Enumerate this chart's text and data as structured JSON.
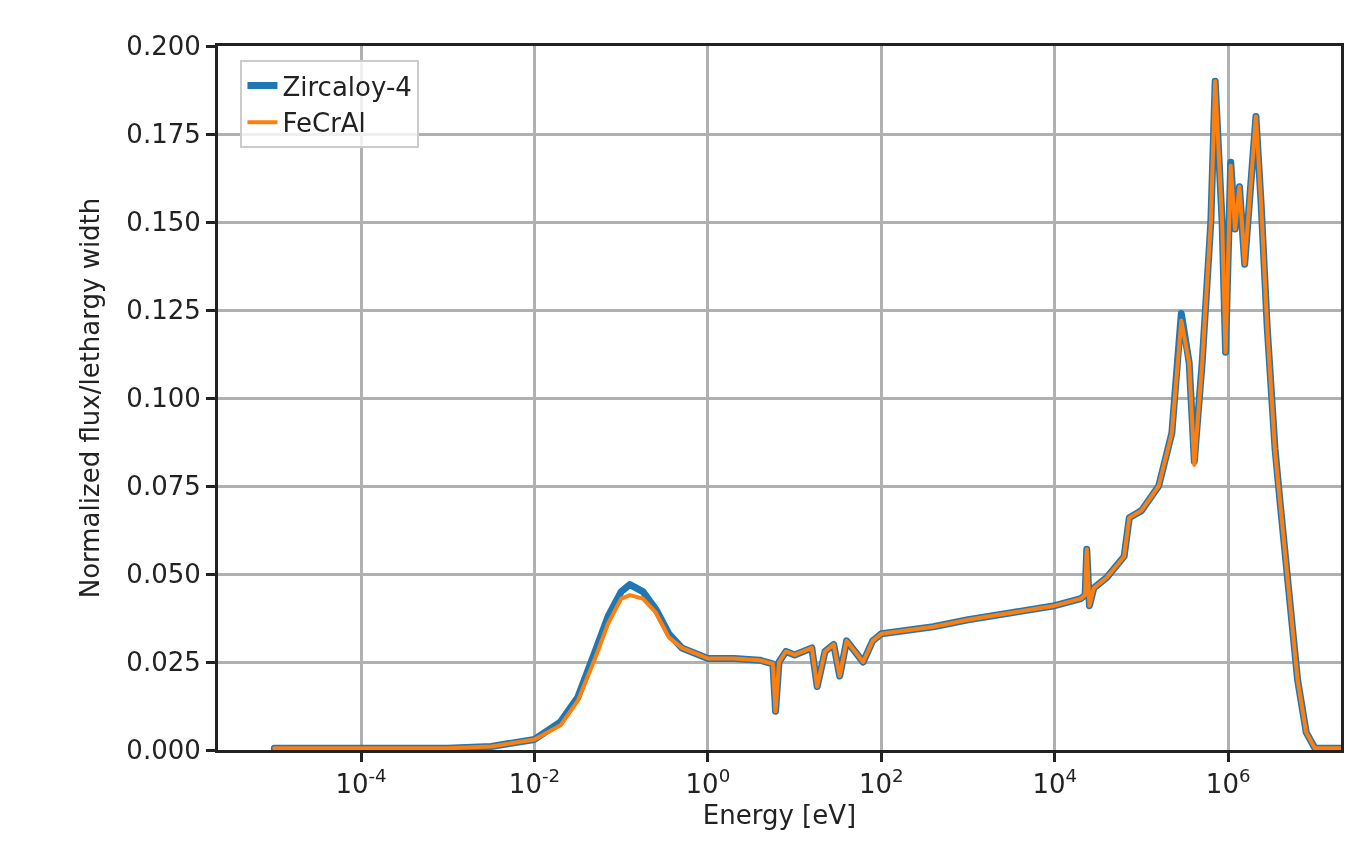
{
  "chart_data": {
    "type": "line",
    "xlabel": "Energy [eV]",
    "ylabel": "Normalized flux/lethargy width",
    "log": "x",
    "grid": true,
    "legend": "top left",
    "line_style": "solid",
    "marker": "none",
    "xlim": [
      2.24e-06,
      20000000.0
    ],
    "xticks": [
      {
        "value": 0.0001,
        "label": "10$^{-4}$"
      },
      {
        "value": 0.01,
        "label": "10$^{-2}$"
      },
      {
        "value": 1,
        "label": "10$^{0}$"
      },
      {
        "value": 100,
        "label": "10$^{2}$"
      },
      {
        "value": 10000,
        "label": "10$^{4}$"
      },
      {
        "value": 1000000,
        "label": "10$^{6}$"
      }
    ],
    "ylim": [
      0,
      0.2
    ],
    "yticks": [
      {
        "value": 0,
        "label": "0.000"
      },
      {
        "value": 0.025,
        "label": "0.025"
      },
      {
        "value": 0.05,
        "label": "0.050"
      },
      {
        "value": 0.075,
        "label": "0.075"
      },
      {
        "value": 0.1,
        "label": "0.100"
      },
      {
        "value": 0.125,
        "label": "0.125"
      },
      {
        "value": 0.15,
        "label": "0.150"
      },
      {
        "value": 0.175,
        "label": "0.175"
      },
      {
        "value": 0.2,
        "label": "0.200"
      }
    ],
    "x": [
      1e-05,
      0.001,
      0.00316,
      0.01,
      0.02,
      0.0316,
      0.05,
      0.0708,
      0.1,
      0.126,
      0.178,
      0.251,
      0.355,
      0.5,
      0.794,
      1,
      2,
      3.98,
      5.62,
      6.03,
      6.61,
      7.94,
      10,
      15.8,
      18.2,
      22.4,
      28.2,
      33.1,
      39.8,
      61.7,
      79.4,
      100,
      200,
      398,
      1000,
      3160,
      10000,
      20000,
      22400,
      23400,
      25100,
      28200,
      39800,
      63100,
      72400,
      100000,
      158000,
      224000,
      288000,
      355000,
      407000,
      501000,
      631000,
      708000,
      851000,
      933000,
      1070000,
      1200000,
      1350000,
      1550000,
      2090000,
      2400000,
      2820000,
      3470000,
      3980000,
      5010000,
      6310000,
      7940000,
      10000000,
      20000000
    ],
    "series": [
      {
        "name": "Zircaloy-4",
        "color": "#1f77b4",
        "values": [
          0.0005,
          0.0005,
          0.001,
          0.003,
          0.008,
          0.015,
          0.028,
          0.038,
          0.045,
          0.047,
          0.045,
          0.04,
          0.033,
          0.029,
          0.027,
          0.026,
          0.026,
          0.0255,
          0.0245,
          0.011,
          0.025,
          0.028,
          0.027,
          0.029,
          0.018,
          0.028,
          0.03,
          0.021,
          0.031,
          0.025,
          0.031,
          0.033,
          0.034,
          0.035,
          0.037,
          0.039,
          0.041,
          0.043,
          0.044,
          0.057,
          0.041,
          0.046,
          0.049,
          0.055,
          0.066,
          0.068,
          0.075,
          0.09,
          0.124,
          0.11,
          0.082,
          0.11,
          0.15,
          0.19,
          0.15,
          0.113,
          0.167,
          0.148,
          0.16,
          0.138,
          0.18,
          0.155,
          0.12,
          0.0855,
          0.07,
          0.045,
          0.02,
          0.005,
          0.0005,
          0.0005
        ]
      },
      {
        "name": "FeCrAl",
        "color": "#ff7f0e",
        "values": [
          0.0005,
          0.0005,
          0.001,
          0.003,
          0.007,
          0.014,
          0.026,
          0.036,
          0.043,
          0.044,
          0.043,
          0.039,
          0.032,
          0.029,
          0.027,
          0.026,
          0.026,
          0.0255,
          0.0245,
          0.011,
          0.025,
          0.028,
          0.027,
          0.029,
          0.018,
          0.028,
          0.03,
          0.021,
          0.031,
          0.025,
          0.031,
          0.033,
          0.034,
          0.035,
          0.037,
          0.039,
          0.041,
          0.043,
          0.044,
          0.057,
          0.041,
          0.046,
          0.049,
          0.055,
          0.066,
          0.068,
          0.075,
          0.09,
          0.122,
          0.11,
          0.081,
          0.11,
          0.15,
          0.19,
          0.15,
          0.113,
          0.166,
          0.148,
          0.16,
          0.138,
          0.18,
          0.155,
          0.12,
          0.085,
          0.07,
          0.045,
          0.02,
          0.005,
          0.0005,
          0.0005
        ]
      }
    ]
  }
}
